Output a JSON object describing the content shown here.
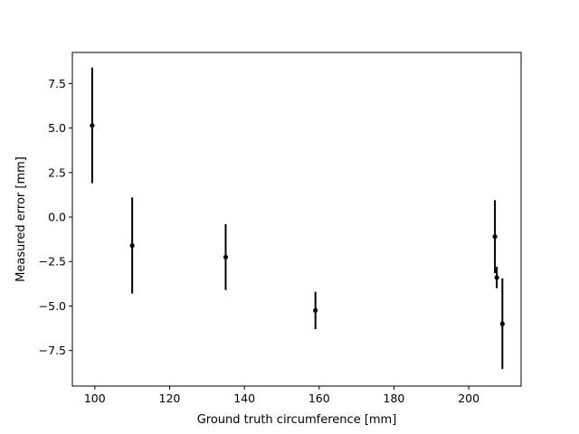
{
  "chart_data": {
    "type": "scatter",
    "title": "",
    "xlabel": "Ground truth circumference [mm]",
    "ylabel": "Measured error [mm]",
    "xlim": [
      94,
      214
    ],
    "ylim": [
      -9.5,
      9.25
    ],
    "xticks": [
      100,
      120,
      140,
      160,
      180,
      200
    ],
    "yticks": [
      -7.5,
      -5.0,
      -2.5,
      0.0,
      2.5,
      5.0,
      7.5
    ],
    "xtick_labels": [
      "100",
      "120",
      "140",
      "160",
      "180",
      "200"
    ],
    "ytick_labels": [
      "−7.5",
      "−5.0",
      "−2.5",
      "0.0",
      "2.5",
      "5.0",
      "7.5"
    ],
    "grid": false,
    "marker_color": "#000000",
    "points": [
      {
        "x": 99.3,
        "y": 5.15,
        "err": 3.25
      },
      {
        "x": 110.0,
        "y": -1.6,
        "err": 2.7
      },
      {
        "x": 135.0,
        "y": -2.25,
        "err": 1.85
      },
      {
        "x": 159.0,
        "y": -5.25,
        "err": 1.05
      },
      {
        "x": 207.0,
        "y": -1.1,
        "err": 2.05
      },
      {
        "x": 207.5,
        "y": -3.4,
        "err": 0.6
      },
      {
        "x": 209.0,
        "y": -6.0,
        "err": 2.55
      }
    ]
  }
}
